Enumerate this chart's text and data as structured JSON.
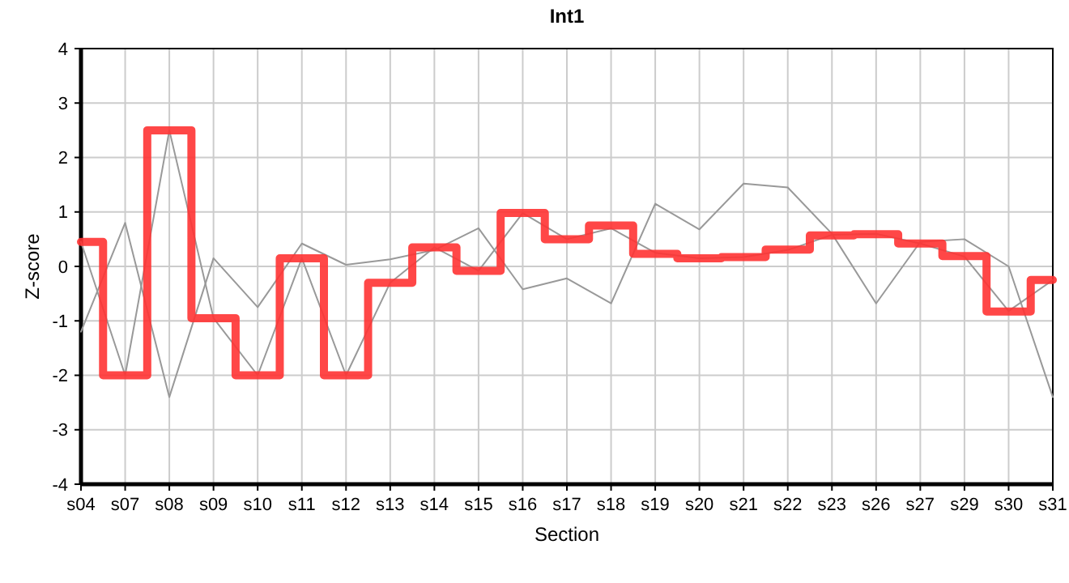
{
  "chart_data": {
    "type": "line",
    "title": "Int1",
    "xlabel": "Section",
    "ylabel": "Z-score",
    "categories": [
      "s04",
      "s07",
      "s08",
      "s09",
      "s10",
      "s11",
      "s12",
      "s13",
      "s14",
      "s15",
      "s16",
      "s17",
      "s18",
      "s19",
      "s20",
      "s21",
      "s22",
      "s23",
      "s26",
      "s27",
      "s29",
      "s30",
      "s31"
    ],
    "series": [
      {
        "color": "#999999",
        "values": [
          -1.2,
          0.8,
          -2.4,
          0.15,
          -0.75,
          0.42,
          0.03,
          0.13,
          0.3,
          0.7,
          -0.42,
          -0.22,
          -0.68,
          1.15,
          0.68,
          1.52,
          1.45,
          0.6,
          -0.68,
          0.45,
          0.5,
          0.0,
          -2.4
        ]
      },
      {
        "color": "#999999",
        "values": [
          0.45,
          -2,
          2.5,
          -0.95,
          -2,
          0.15,
          -2,
          -0.3,
          0.35,
          -0.08,
          0.98,
          0.5,
          0.7,
          0.25,
          0.15,
          0.17,
          0.3,
          0.58,
          0.6,
          0.42,
          0.18,
          -0.82,
          -0.25
        ]
      },
      {
        "type": "step",
        "color": "#ff3333",
        "values": [
          0.45,
          -2,
          2.5,
          -0.95,
          -2,
          0.15,
          -2,
          -0.3,
          0.35,
          -0.08,
          0.98,
          0.5,
          0.75,
          0.23,
          0.15,
          0.17,
          0.31,
          0.57,
          0.59,
          0.42,
          0.19,
          -0.83,
          -0.25
        ]
      }
    ],
    "ylim": [
      -4,
      4
    ],
    "yticks": [
      -4,
      -3,
      -2,
      -1,
      0,
      1,
      2,
      3,
      4
    ],
    "grid": true
  }
}
